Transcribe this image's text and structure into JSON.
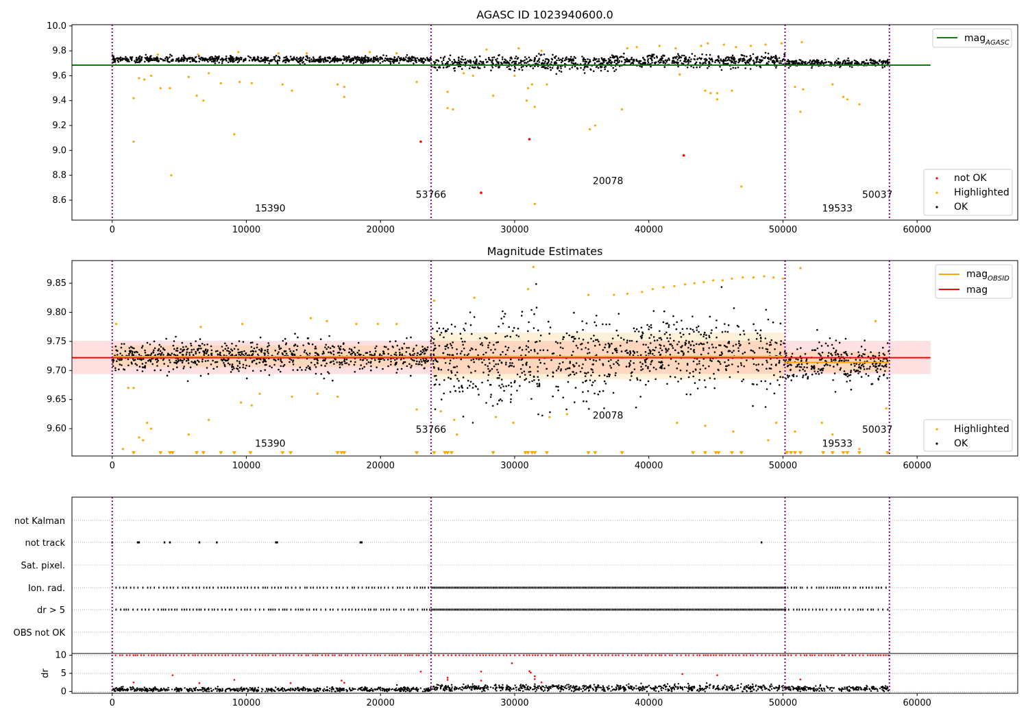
{
  "chart_data": [
    {
      "type": "scatter",
      "title": "AGASC ID 1023940600.0",
      "xlim": [
        -3000,
        67500
      ],
      "ylim": [
        8.44,
        10.01
      ],
      "xticks": [
        0,
        10000,
        20000,
        30000,
        40000,
        50000,
        60000
      ],
      "yticks": [
        8.6,
        8.8,
        9.0,
        9.2,
        9.4,
        9.6,
        9.8,
        10.0
      ],
      "ytick_labels": [
        "8.6",
        "8.8",
        "9.0",
        "9.2",
        "9.4",
        "9.6",
        "9.8",
        "10.0"
      ],
      "obs_boundaries": [
        0,
        23766,
        50156,
        57936
      ],
      "obsid_labels": [
        {
          "x": 11780,
          "y": 8.51,
          "text": "15390"
        },
        {
          "x": 23766,
          "y": 8.62,
          "text": "53766"
        },
        {
          "x": 36960,
          "y": 8.73,
          "text": "20078"
        },
        {
          "x": 54050,
          "y": 8.51,
          "text": "19533"
        },
        {
          "x": 57040,
          "y": 8.62,
          "text": "50037"
        }
      ],
      "mag_agasc": {
        "name": "mag",
        "subscript": "AGASC",
        "value": 9.685,
        "x_range": [
          -3000,
          61000
        ],
        "color": "#008000"
      },
      "ok_segments": [
        {
          "x0": 0,
          "x1": 23766,
          "center": 9.73,
          "spread": 0.025
        },
        {
          "x0": 23766,
          "x1": 37000,
          "center": 9.7,
          "spread": 0.06
        },
        {
          "x0": 37000,
          "x1": 50156,
          "center": 9.72,
          "spread": 0.05
        },
        {
          "x0": 50156,
          "x1": 57936,
          "center": 9.7,
          "spread": 0.03
        }
      ],
      "highlighted_points": [
        [
          1600,
          9.42
        ],
        [
          1600,
          9.07
        ],
        [
          2000,
          9.58
        ],
        [
          2400,
          9.57
        ],
        [
          2900,
          9.6
        ],
        [
          3600,
          9.5
        ],
        [
          4300,
          9.5
        ],
        [
          4400,
          8.8
        ],
        [
          5700,
          9.59
        ],
        [
          6300,
          9.44
        ],
        [
          6800,
          9.4
        ],
        [
          7200,
          9.62
        ],
        [
          8100,
          9.54
        ],
        [
          9100,
          9.13
        ],
        [
          9500,
          9.55
        ],
        [
          10400,
          9.54
        ],
        [
          12700,
          9.53
        ],
        [
          13400,
          9.48
        ],
        [
          17300,
          9.43
        ],
        [
          17300,
          9.51
        ],
        [
          16800,
          9.53
        ],
        [
          22700,
          9.55
        ],
        [
          25000,
          9.47
        ],
        [
          25000,
          9.34
        ],
        [
          25400,
          9.33
        ],
        [
          28400,
          9.44
        ],
        [
          30900,
          9.4
        ],
        [
          31000,
          9.5
        ],
        [
          31300,
          9.53
        ],
        [
          31500,
          9.35
        ],
        [
          31500,
          8.57
        ],
        [
          32400,
          9.53
        ],
        [
          35600,
          9.17
        ],
        [
          36000,
          9.2
        ],
        [
          38000,
          9.33
        ],
        [
          44600,
          9.46
        ],
        [
          45100,
          9.46
        ],
        [
          45100,
          9.41
        ],
        [
          46900,
          8.71
        ],
        [
          50900,
          9.51
        ],
        [
          51300,
          9.31
        ],
        [
          51500,
          9.49
        ],
        [
          53700,
          9.53
        ],
        [
          54500,
          9.43
        ],
        [
          54800,
          9.41
        ],
        [
          55700,
          9.37
        ],
        [
          51400,
          9.87
        ],
        [
          44200,
          9.48
        ],
        [
          46200,
          9.48
        ],
        [
          42300,
          9.61
        ],
        [
          30000,
          9.6
        ],
        [
          26900,
          9.6
        ],
        [
          26200,
          9.62
        ],
        [
          42000,
          9.82
        ],
        [
          43900,
          9.84
        ],
        [
          47600,
          9.84
        ],
        [
          48700,
          9.85
        ],
        [
          49900,
          9.86
        ],
        [
          39100,
          9.83
        ],
        [
          38400,
          9.82
        ],
        [
          40800,
          9.84
        ],
        [
          44400,
          9.86
        ],
        [
          45600,
          9.85
        ],
        [
          46500,
          9.83
        ],
        [
          32000,
          9.8
        ],
        [
          27900,
          9.81
        ],
        [
          30300,
          9.82
        ],
        [
          14500,
          9.78
        ],
        [
          19200,
          9.79
        ],
        [
          21200,
          9.78
        ],
        [
          9400,
          9.79
        ],
        [
          12400,
          9.78
        ],
        [
          6400,
          9.77
        ],
        [
          3400,
          9.77
        ]
      ],
      "not_ok_points": [
        [
          23000,
          9.07
        ],
        [
          27500,
          8.66
        ],
        [
          31100,
          9.09
        ],
        [
          42600,
          8.96
        ]
      ],
      "legend_main": [
        {
          "name": "not OK",
          "color": "#ff0000"
        },
        {
          "name": "Highlighted",
          "color": "#ffa500"
        },
        {
          "name": "OK",
          "color": "#000000"
        }
      ]
    },
    {
      "type": "scatter",
      "title": "Magnitude Estimates",
      "xlim": [
        -3000,
        67500
      ],
      "ylim": [
        9.553,
        9.889
      ],
      "xticks": [
        0,
        10000,
        20000,
        30000,
        40000,
        50000,
        60000
      ],
      "yticks": [
        9.6,
        9.65,
        9.7,
        9.75,
        9.8,
        9.85
      ],
      "ytick_labels": [
        "9.60",
        "9.65",
        "9.70",
        "9.75",
        "9.80",
        "9.85"
      ],
      "obs_boundaries": [
        0,
        23766,
        50156,
        57936
      ],
      "obsid_labels": [
        {
          "x": 11780,
          "y": 9.569,
          "text": "15390"
        },
        {
          "x": 23766,
          "y": 9.593,
          "text": "53766"
        },
        {
          "x": 36960,
          "y": 9.617,
          "text": "20078"
        },
        {
          "x": 54050,
          "y": 9.569,
          "text": "19533"
        },
        {
          "x": 57040,
          "y": 9.593,
          "text": "50037"
        }
      ],
      "mag_line": {
        "name": "mag",
        "value": 9.722,
        "band": [
          9.694,
          9.751
        ],
        "x_range": [
          -3000,
          61000
        ],
        "color": "#ff0000"
      },
      "mag_obsid": {
        "name": "mag",
        "subscript": "OBSID",
        "color": "#ffa500",
        "segments": [
          {
            "x0": 0,
            "x1": 23766,
            "value": 9.724,
            "band": [
              9.706,
              9.743
            ]
          },
          {
            "x0": 23766,
            "x1": 50156,
            "value": 9.724,
            "band": [
              9.685,
              9.765
            ]
          },
          {
            "x0": 50156,
            "x1": 57936,
            "value": 9.714,
            "band": [
              9.697,
              9.732
            ]
          }
        ]
      },
      "ok_segments": [
        {
          "x0": 0,
          "x1": 23766,
          "center": 9.724,
          "spread": 0.025
        },
        {
          "x0": 23766,
          "x1": 37000,
          "center": 9.715,
          "spread": 0.075
        },
        {
          "x0": 37000,
          "x1": 50156,
          "center": 9.73,
          "spread": 0.06
        },
        {
          "x0": 50156,
          "x1": 57936,
          "center": 9.712,
          "spread": 0.035
        }
      ],
      "highlighted_points": [
        [
          300,
          9.78
        ],
        [
          800,
          9.565
        ],
        [
          1200,
          9.67
        ],
        [
          1600,
          9.67
        ],
        [
          2000,
          9.585
        ],
        [
          2300,
          9.58
        ],
        [
          2600,
          9.61
        ],
        [
          2900,
          9.6
        ],
        [
          5700,
          9.59
        ],
        [
          7200,
          9.615
        ],
        [
          9600,
          9.645
        ],
        [
          10400,
          9.64
        ],
        [
          11000,
          9.66
        ],
        [
          13400,
          9.655
        ],
        [
          15300,
          9.66
        ],
        [
          16800,
          9.655
        ],
        [
          22700,
          9.633
        ],
        [
          24000,
          9.82
        ],
        [
          24500,
          9.63
        ],
        [
          25500,
          9.615
        ],
        [
          25700,
          9.59
        ],
        [
          27000,
          9.825
        ],
        [
          28600,
          9.62
        ],
        [
          29900,
          9.61
        ],
        [
          31000,
          9.84
        ],
        [
          31400,
          9.878
        ],
        [
          32600,
          9.62
        ],
        [
          33900,
          9.625
        ],
        [
          35500,
          9.83
        ],
        [
          42100,
          9.61
        ],
        [
          44200,
          9.605
        ],
        [
          46300,
          9.595
        ],
        [
          48900,
          9.58
        ],
        [
          49500,
          9.61
        ],
        [
          50900,
          9.595
        ],
        [
          51300,
          9.876
        ],
        [
          52900,
          9.61
        ],
        [
          53700,
          9.59
        ],
        [
          55700,
          9.565
        ],
        [
          56900,
          9.785
        ],
        [
          57700,
          9.635
        ],
        [
          14800,
          9.79
        ],
        [
          16000,
          9.785
        ],
        [
          9700,
          9.78
        ],
        [
          18200,
          9.78
        ],
        [
          19800,
          9.78
        ],
        [
          21200,
          9.78
        ],
        [
          6600,
          9.775
        ],
        [
          37400,
          9.83
        ],
        [
          38400,
          9.832
        ],
        [
          39500,
          9.835
        ],
        [
          40300,
          9.84
        ],
        [
          41100,
          9.843
        ],
        [
          41900,
          9.845
        ],
        [
          42700,
          9.848
        ],
        [
          43400,
          9.85
        ],
        [
          44100,
          9.852
        ],
        [
          44800,
          9.855
        ],
        [
          45500,
          9.855
        ],
        [
          46200,
          9.858
        ],
        [
          47000,
          9.86
        ],
        [
          47800,
          9.86
        ],
        [
          48600,
          9.862
        ],
        [
          49300,
          9.86
        ],
        [
          50000,
          9.858
        ]
      ],
      "highlighted_markers": [
        1600,
        3600,
        4300,
        4500,
        6300,
        6800,
        8100,
        9100,
        10300,
        12700,
        13300,
        16800,
        17100,
        17300,
        22700,
        24000,
        24800,
        25000,
        25300,
        28400,
        30800,
        31000,
        31300,
        31500,
        32400,
        35500,
        36000,
        38000,
        43300,
        44200,
        45000,
        45200,
        46200,
        46900,
        50300,
        50600,
        50900,
        51300,
        53000,
        53700,
        54500,
        54800,
        55700,
        57800
      ],
      "legend_top": [
        {
          "name": "mag",
          "subscript": "OBSID",
          "color": "#ffa500"
        },
        {
          "name": "mag",
          "color": "#ff0000"
        }
      ],
      "legend_bottom": [
        {
          "name": "Highlighted",
          "color": "#ffa500"
        },
        {
          "name": "OK",
          "color": "#000000"
        }
      ]
    },
    {
      "type": "scatter",
      "xlim": [
        -3000,
        67500
      ],
      "xticks": [
        0,
        10000,
        20000,
        30000,
        40000,
        50000,
        60000
      ],
      "obs_boundaries": [
        0,
        23766,
        50156,
        57936
      ],
      "flag_rows": [
        {
          "label": "not Kalman",
          "points": []
        },
        {
          "label": "not track",
          "points": [
            0,
            1900,
            2000,
            3900,
            4300,
            6500,
            7800,
            12200,
            12300,
            18500,
            18600,
            48400
          ]
        },
        {
          "label": "Sat. pixel.",
          "points": []
        },
        {
          "label": "Ion. rad.",
          "density": "dense",
          "segments": [
            [
              250,
              23766
            ],
            [
              23766,
              50156
            ],
            [
              50156,
              57936
            ]
          ]
        },
        {
          "label": "dr > 5",
          "density": "dense",
          "segments": [
            [
              250,
              23766
            ],
            [
              23766,
              50156
            ],
            [
              50156,
              57936
            ]
          ]
        },
        {
          "label": "OBS not OK",
          "points": []
        }
      ],
      "dr_panel": {
        "ylabel": "dr",
        "ylim": [
          -0.5,
          10.5
        ],
        "yticks": [
          0,
          5,
          10
        ],
        "ok_segments": [
          {
            "x0": 0,
            "x1": 23766,
            "center": 0.5,
            "spread": 0.6
          },
          {
            "x0": 23766,
            "x1": 50156,
            "center": 1.0,
            "spread": 0.9
          },
          {
            "x0": 50156,
            "x1": 57936,
            "center": 0.8,
            "spread": 0.7
          }
        ],
        "red_clipped_value": 10,
        "red_points": [
          [
            1600,
            2.5
          ],
          [
            4500,
            4.5
          ],
          [
            6500,
            2.3
          ],
          [
            9100,
            3.2
          ],
          [
            13300,
            2.3
          ],
          [
            17100,
            3.0
          ],
          [
            17300,
            2.4
          ],
          [
            23000,
            5.5
          ],
          [
            25000,
            3.8
          ],
          [
            25000,
            3.2
          ],
          [
            27500,
            5.5
          ],
          [
            27500,
            3.0
          ],
          [
            29800,
            7.8
          ],
          [
            31100,
            5.6
          ],
          [
            31200,
            5.2
          ],
          [
            31500,
            4.2
          ],
          [
            31500,
            3.4
          ],
          [
            32000,
            2.5
          ],
          [
            42500,
            4.8
          ],
          [
            45100,
            4.5
          ],
          [
            51300,
            3.3
          ]
        ]
      }
    }
  ]
}
